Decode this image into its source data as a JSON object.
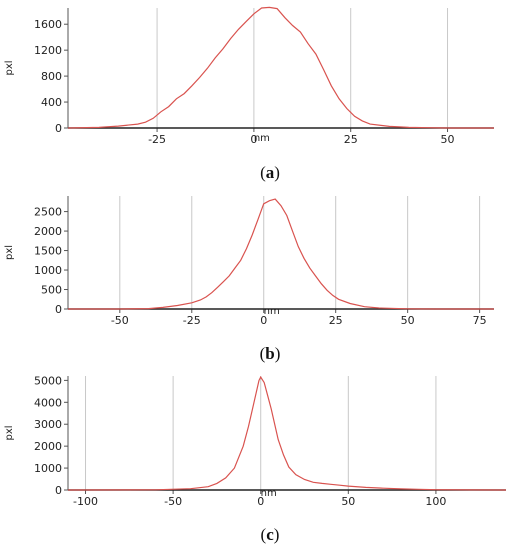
{
  "panel_labels": [
    "a",
    "b",
    "c"
  ],
  "colors": {
    "line": "#d9534f",
    "grid": "#c8c8c8",
    "axis": "#555555",
    "baseline": "#222222"
  },
  "chart_data": [
    {
      "type": "line",
      "panel": "a",
      "xlabel": "nm",
      "ylabel": "pxl",
      "xlim": [
        -48,
        62
      ],
      "ylim": [
        0,
        1850
      ],
      "xticks": [
        -25,
        0,
        25,
        50
      ],
      "yticks": [
        0,
        400,
        800,
        1200,
        1600
      ],
      "grid": true,
      "x": [
        -48,
        -40,
        -35,
        -30,
        -28,
        -26,
        -24,
        -22,
        -20,
        -18,
        -16,
        -14,
        -12,
        -10,
        -8,
        -6,
        -4,
        -2,
        0,
        2,
        4,
        6,
        8,
        10,
        12,
        14,
        16,
        18,
        20,
        22,
        24,
        26,
        28,
        30,
        35,
        40,
        45,
        50,
        55,
        62
      ],
      "y": [
        0,
        10,
        30,
        60,
        90,
        150,
        250,
        330,
        450,
        530,
        650,
        780,
        920,
        1080,
        1220,
        1380,
        1520,
        1640,
        1760,
        1850,
        1860,
        1840,
        1700,
        1580,
        1480,
        1300,
        1140,
        900,
        650,
        450,
        300,
        180,
        110,
        60,
        25,
        10,
        5,
        0,
        0,
        0
      ]
    },
    {
      "type": "line",
      "panel": "b",
      "xlabel": "nm",
      "ylabel": "pxl",
      "xlim": [
        -68,
        80
      ],
      "ylim": [
        0,
        2900
      ],
      "xticks": [
        -50,
        -25,
        0,
        25,
        50,
        75
      ],
      "yticks": [
        0,
        500,
        1000,
        1500,
        2000,
        2500
      ],
      "grid": true,
      "x": [
        -68,
        -50,
        -40,
        -35,
        -30,
        -25,
        -22,
        -20,
        -18,
        -16,
        -14,
        -12,
        -10,
        -8,
        -6,
        -4,
        -2,
        0,
        2,
        4,
        6,
        8,
        10,
        12,
        14,
        16,
        18,
        20,
        22,
        24,
        26,
        30,
        35,
        40,
        50,
        60,
        70,
        80
      ],
      "y": [
        0,
        0,
        10,
        40,
        90,
        160,
        230,
        310,
        420,
        560,
        700,
        850,
        1050,
        1250,
        1550,
        1900,
        2300,
        2700,
        2780,
        2820,
        2650,
        2400,
        2000,
        1600,
        1300,
        1050,
        850,
        650,
        480,
        350,
        250,
        140,
        60,
        25,
        5,
        0,
        0,
        0
      ]
    },
    {
      "type": "line",
      "panel": "c",
      "xlabel": "nm",
      "ylabel": "pxl",
      "xlim": [
        -110,
        140
      ],
      "ylim": [
        0,
        5200
      ],
      "xticks": [
        -100,
        -50,
        0,
        50,
        100
      ],
      "yticks": [
        0,
        1000,
        2000,
        3000,
        4000,
        5000
      ],
      "grid": true,
      "x": [
        -110,
        -60,
        -40,
        -30,
        -25,
        -20,
        -15,
        -10,
        -7,
        -5,
        -3,
        -1,
        0,
        2,
        4,
        6,
        8,
        10,
        13,
        16,
        20,
        25,
        30,
        35,
        40,
        45,
        50,
        60,
        70,
        80,
        90,
        100,
        120,
        140
      ],
      "y": [
        0,
        10,
        60,
        150,
        300,
        550,
        1000,
        2000,
        2900,
        3600,
        4300,
        5000,
        5150,
        4900,
        4300,
        3700,
        3000,
        2300,
        1600,
        1050,
        700,
        480,
        350,
        300,
        260,
        220,
        180,
        120,
        80,
        50,
        30,
        15,
        5,
        0
      ]
    }
  ]
}
